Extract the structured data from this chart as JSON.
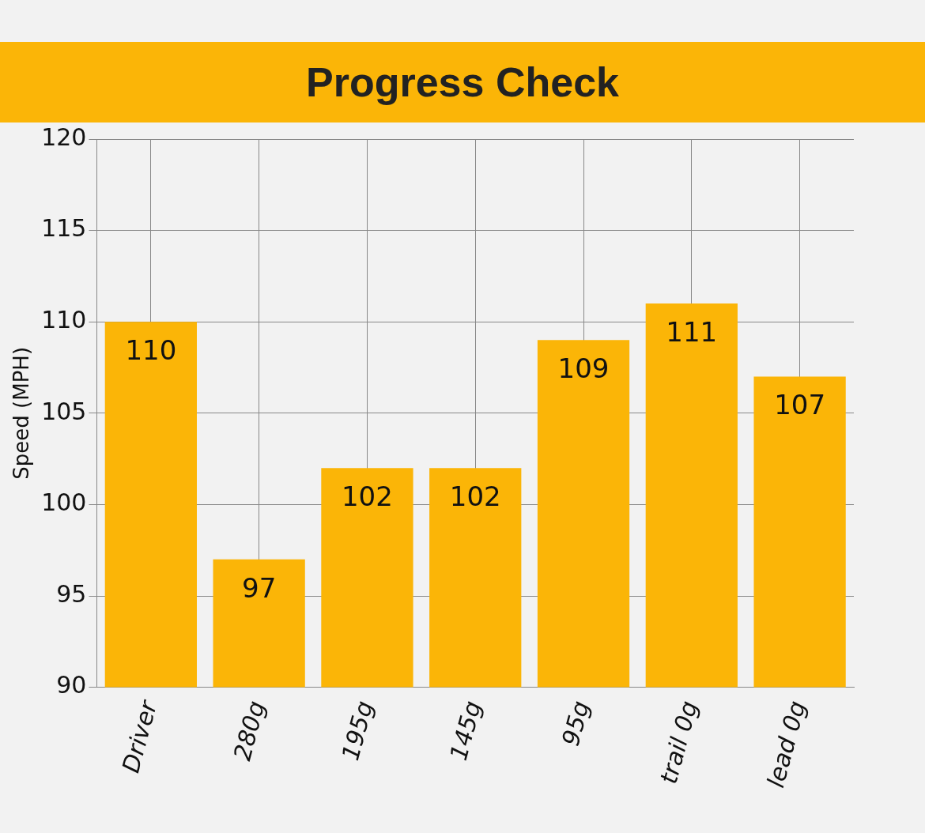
{
  "chart_data": {
    "type": "bar",
    "title": "Progress Check",
    "ylabel": "Speed (MPH)",
    "categories": [
      "Driver",
      "280g",
      "195g",
      "145g",
      "95g",
      "trail 0g",
      "lead 0g"
    ],
    "values": [
      110,
      97,
      102,
      102,
      109,
      111,
      107
    ],
    "color": "#fbb507",
    "ylim": [
      90,
      120
    ],
    "yticks": [
      90,
      95,
      100,
      105,
      110,
      115,
      120
    ],
    "grid": true,
    "data_labels": true,
    "legend": false
  }
}
